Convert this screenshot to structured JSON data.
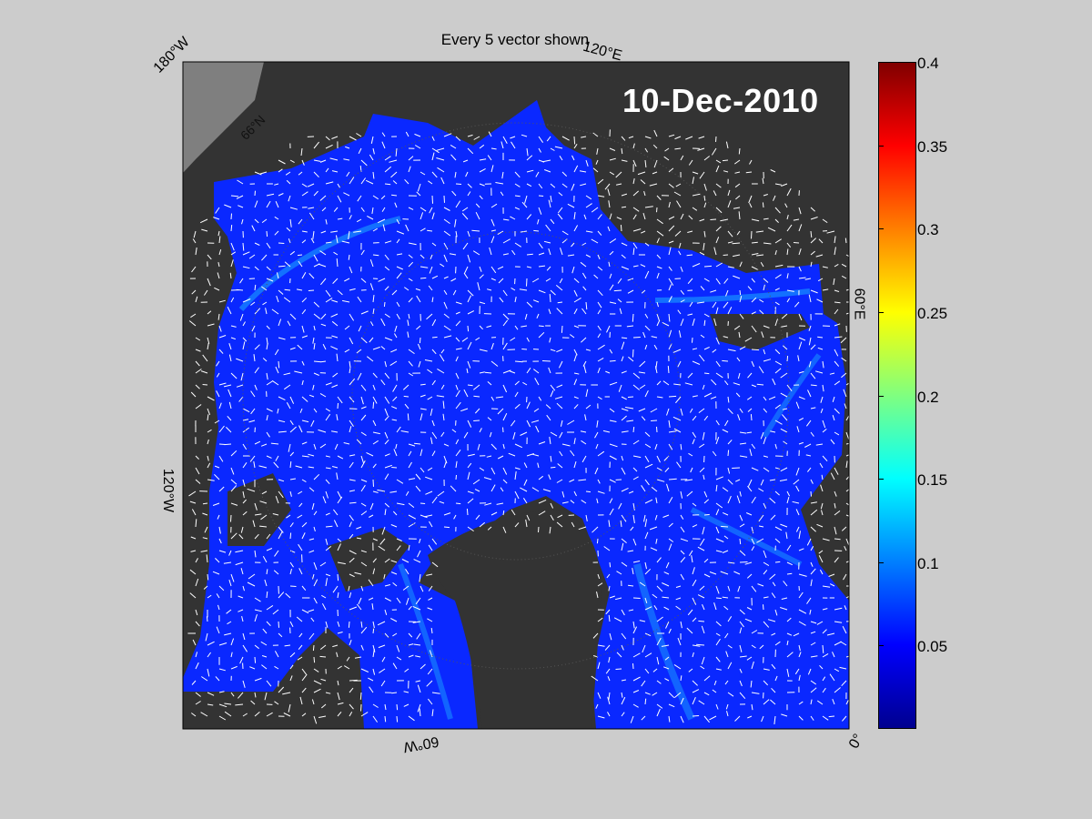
{
  "title": "Every 5 vector shown",
  "date_label": "10-Dec-2010",
  "lon_labels": {
    "top_left": "180°W",
    "top_right": "120°E",
    "right": "60°E",
    "bottom_right": "0°",
    "bottom": "60°W",
    "left": "120°W"
  },
  "lat_label": "66°N",
  "colorbar": {
    "min": 0,
    "max": 0.4,
    "ticks": [
      "0.05",
      "0.1",
      "0.15",
      "0.2",
      "0.25",
      "0.3",
      "0.35",
      "0.4"
    ],
    "colormap": "jet"
  },
  "colors": {
    "background": "#cccccc",
    "land": "#333333",
    "ocean_open": "#7f7f7f",
    "ice_drift_base": "#0a28ff",
    "vector": "#ffffff"
  }
}
